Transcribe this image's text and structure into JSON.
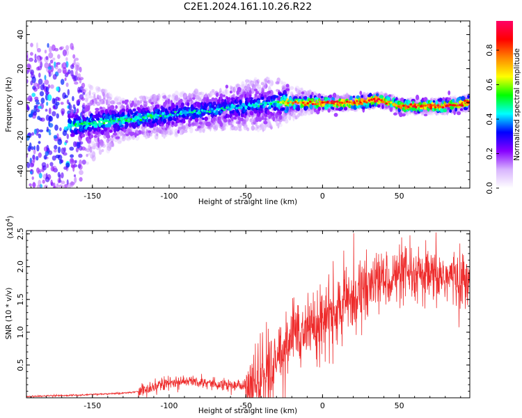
{
  "title": "C2E1.2024.161.10.26.R22",
  "colors": {
    "line": "#ee2b2b",
    "axis": "#000000",
    "background": "#ffffff"
  },
  "chart_data": [
    {
      "type": "heatmap",
      "xlabel": "Height of straight line (km)",
      "ylabel": "Frequency (Hz)",
      "xlim": [
        -193,
        96
      ],
      "ylim": [
        -50,
        48
      ],
      "x_ticks": [
        -150,
        -100,
        -50,
        0,
        50
      ],
      "y_ticks": [
        -40,
        -20,
        0,
        20,
        40
      ],
      "colorbar": {
        "label": "Normalized spectral amplitude",
        "range": [
          0,
          0.97
        ],
        "ticks": [
          0.0,
          0.2,
          0.4,
          0.6,
          0.8
        ],
        "colormap": [
          "#ffffff",
          "#d8b4fe",
          "#8800ff",
          "#0000ff",
          "#00ffff",
          "#00ff00",
          "#ffff00",
          "#ff8800",
          "#ff0000",
          "#ff0066"
        ]
      },
      "ridge": {
        "x": [
          -160,
          -150,
          -130,
          -110,
          -100,
          -80,
          -60,
          -50,
          -40,
          -30,
          -22,
          -10,
          0,
          10,
          20,
          30,
          35,
          40,
          45,
          50,
          60,
          70,
          80,
          95
        ],
        "frequency": [
          -13,
          -12,
          -10,
          -8,
          -7,
          -5,
          -3,
          -2,
          -1,
          0,
          0,
          0,
          0,
          0,
          0,
          1,
          2,
          1,
          0,
          -2,
          -2,
          -2,
          -2,
          0
        ],
        "amplitude": [
          0.5,
          0.5,
          0.5,
          0.5,
          0.45,
          0.45,
          0.45,
          0.45,
          0.45,
          0.5,
          0.75,
          0.8,
          0.85,
          0.85,
          0.85,
          0.8,
          0.9,
          0.8,
          0.75,
          0.8,
          0.85,
          0.9,
          0.85,
          0.85
        ]
      },
      "noise_floor": {
        "x": [
          -193,
          -178,
          -163,
          -155,
          -130,
          -100,
          -80,
          -60,
          -50,
          -30,
          -22,
          0,
          50,
          95
        ],
        "frequency_spread": [
          48,
          48,
          48,
          25,
          12,
          12,
          12,
          12,
          15,
          15,
          10,
          4,
          4,
          4
        ]
      }
    },
    {
      "type": "line",
      "xlabel": "Height of straight line (km)",
      "ylabel": "SNR (10 * v/v)",
      "y_multiplier": "(x10",
      "y_multiplier_exp": "4",
      "y_multiplier_close": ")",
      "xlim": [
        -193,
        96
      ],
      "ylim": [
        0,
        2.55
      ],
      "x_ticks": [
        -150,
        -100,
        -50,
        0,
        50
      ],
      "y_ticks": [
        0.5,
        1.0,
        1.5,
        2.0,
        2.5
      ],
      "y_tick_labels": [
        "0.5",
        "1.0",
        "1.5",
        "2.0",
        "2.5"
      ],
      "series": [
        {
          "x": [
            -193,
            -160,
            -140,
            -125,
            -115,
            -105,
            -95,
            -88,
            -80,
            -70,
            -60,
            -52,
            -45,
            -40,
            -35,
            -30,
            -25,
            -20,
            -15,
            -10,
            -5,
            0,
            5,
            10,
            15,
            20,
            25,
            30,
            35,
            40,
            50,
            60,
            70,
            80,
            90,
            96
          ],
          "y": [
            0.02,
            0.04,
            0.06,
            0.08,
            0.12,
            0.2,
            0.24,
            0.26,
            0.24,
            0.22,
            0.2,
            0.18,
            0.2,
            0.3,
            0.4,
            0.55,
            0.75,
            0.95,
            1.05,
            1.1,
            1.15,
            1.2,
            1.25,
            1.3,
            1.45,
            1.55,
            1.65,
            1.7,
            1.78,
            1.82,
            1.85,
            1.85,
            1.82,
            1.85,
            1.8,
            1.78
          ]
        }
      ]
    }
  ]
}
